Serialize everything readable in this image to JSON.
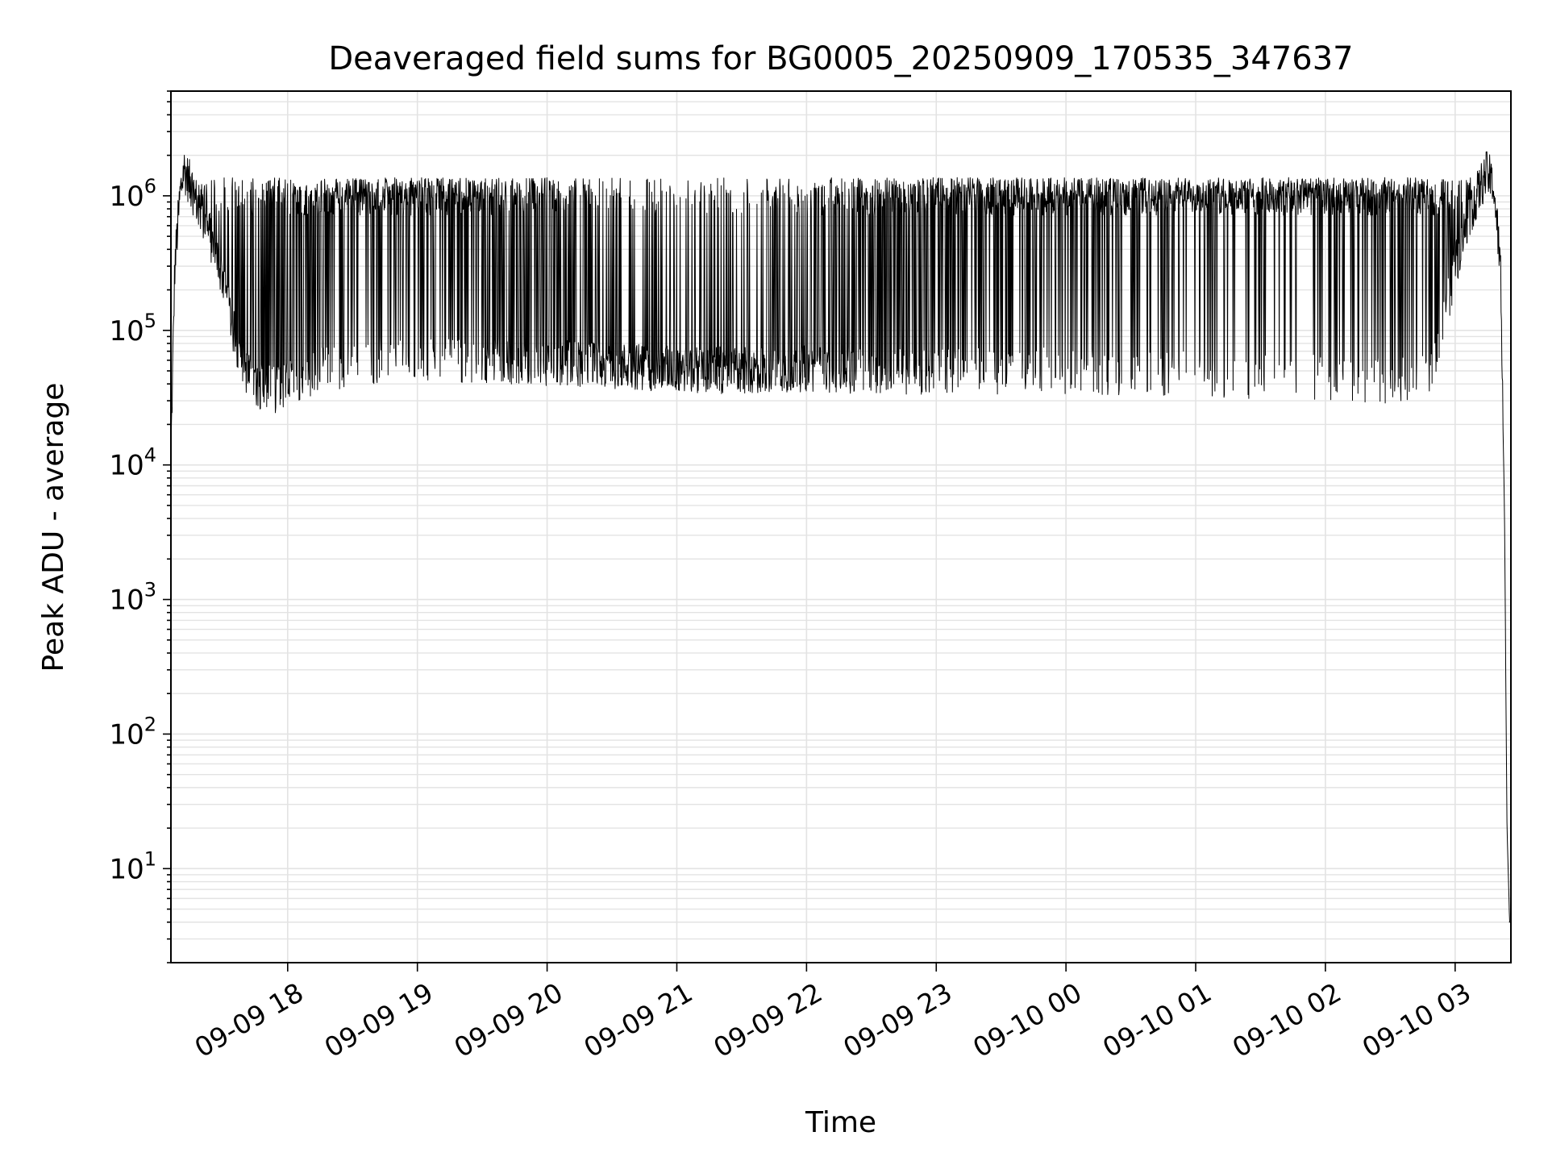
{
  "chart_data": {
    "type": "line",
    "title": "Deaveraged field sums for BG0005_20250909_170535_347637",
    "xlabel": "Time",
    "ylabel": "Peak ADU - average",
    "yscale": "log",
    "ylim": [
      2,
      6000000
    ],
    "xlim_hours": [
      17.1,
      27.43
    ],
    "grid": true,
    "line_color": "#000000",
    "x_ticks": [
      {
        "hour": 18,
        "label": "09-09 18"
      },
      {
        "hour": 19,
        "label": "09-09 19"
      },
      {
        "hour": 20,
        "label": "09-09 20"
      },
      {
        "hour": 21,
        "label": "09-09 21"
      },
      {
        "hour": 22,
        "label": "09-09 22"
      },
      {
        "hour": 23,
        "label": "09-09 23"
      },
      {
        "hour": 24,
        "label": "09-10 00"
      },
      {
        "hour": 25,
        "label": "09-10 01"
      },
      {
        "hour": 26,
        "label": "09-10 02"
      },
      {
        "hour": 27,
        "label": "09-10 03"
      }
    ],
    "y_ticks": [
      {
        "value": 10,
        "base": "10",
        "exp": "1"
      },
      {
        "value": 100,
        "base": "10",
        "exp": "2"
      },
      {
        "value": 1000,
        "base": "10",
        "exp": "3"
      },
      {
        "value": 10000,
        "base": "10",
        "exp": "4"
      },
      {
        "value": 100000,
        "base": "10",
        "exp": "5"
      },
      {
        "value": 1000000,
        "base": "10",
        "exp": "6"
      }
    ],
    "series": [
      {
        "name": "field sum",
        "hours": [
          17.1,
          17.13,
          17.17,
          17.2,
          17.25,
          17.3,
          17.4,
          17.5,
          17.6,
          17.7,
          17.8,
          17.9,
          18.0,
          18.2,
          18.4,
          18.6,
          18.8,
          19.0,
          19.5,
          20.0,
          20.5,
          21.0,
          21.5,
          22.0,
          22.5,
          23.0,
          23.5,
          24.0,
          24.5,
          25.0,
          25.5,
          26.0,
          26.5,
          26.8,
          26.9,
          27.0,
          27.1,
          27.2,
          27.25,
          27.3,
          27.35,
          27.38,
          27.4,
          27.42,
          27.43
        ],
        "baseline": [
          12000,
          300000,
          1000000,
          1600000,
          1200000,
          900000,
          500000,
          250000,
          80000,
          45000,
          38000,
          36000,
          40000,
          48000,
          55000,
          58000,
          60000,
          62000,
          60000,
          58000,
          55000,
          52000,
          50000,
          52000,
          50000,
          50000,
          50000,
          50000,
          48000,
          47000,
          45000,
          44000,
          42000,
          50000,
          100000,
          300000,
          700000,
          1200000,
          1500000,
          1100000,
          300000,
          5000,
          20,
          4,
          4
        ],
        "spike_density": [
          0,
          0,
          0,
          0,
          0.3,
          0.3,
          0.3,
          0.3,
          0.2,
          0.2,
          0.4,
          0.6,
          0.5,
          0.6,
          0.8,
          0.8,
          0.8,
          0.75,
          0.65,
          0.55,
          0.25,
          0.2,
          0.25,
          0.35,
          0.55,
          0.65,
          0.75,
          0.8,
          0.85,
          0.85,
          0.85,
          0.85,
          0.85,
          0.85,
          0.6,
          0.3,
          0.2,
          0.1,
          0.1,
          0.1,
          0,
          0,
          0,
          0,
          0
        ],
        "spike_peak": 1300000,
        "tail_value": 4
      }
    ]
  }
}
